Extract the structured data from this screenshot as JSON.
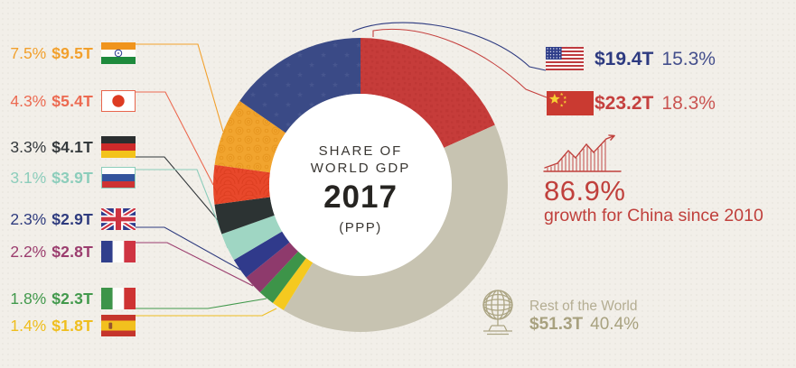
{
  "background_color": "#F2EFE9",
  "center": {
    "line1": "SHARE OF",
    "line2": "WORLD GDP",
    "year": "2017",
    "subtitle": "(PPP)"
  },
  "chart_data": {
    "type": "pie",
    "variant": "donut",
    "title": "Share of World GDP 2017 (PPP)",
    "start_angle_deg": 0,
    "direction": "clockwise",
    "segments": [
      {
        "name": "China",
        "percent": 18.3,
        "value": "$23.2T",
        "color": "#C63C3A",
        "pattern": "china"
      },
      {
        "name": "Rest of the World",
        "percent": 40.4,
        "value": "$51.3T",
        "color": "#C7C3B1"
      },
      {
        "name": "Spain",
        "percent": 1.4,
        "value": "$1.8T",
        "color": "#F5C91F"
      },
      {
        "name": "Italy",
        "percent": 1.8,
        "value": "$2.3T",
        "color": "#3D9449"
      },
      {
        "name": "France",
        "percent": 2.2,
        "value": "$2.8T",
        "color": "#8E3A6C"
      },
      {
        "name": "United Kingdom",
        "percent": 2.3,
        "value": "$2.9T",
        "color": "#303A8B"
      },
      {
        "name": "Russia",
        "percent": 3.1,
        "value": "$3.9T",
        "color": "#9FD6C3"
      },
      {
        "name": "Germany",
        "percent": 3.3,
        "value": "$4.1T",
        "color": "#2C3333"
      },
      {
        "name": "Japan",
        "percent": 4.3,
        "value": "$5.4T",
        "color": "#E8482B",
        "pattern": "japan"
      },
      {
        "name": "India",
        "percent": 7.5,
        "value": "$9.5T",
        "color": "#F1A42E",
        "pattern": "india"
      },
      {
        "name": "United States",
        "percent": 15.3,
        "value": "$19.4T",
        "color": "#3A4A86",
        "pattern": "us"
      }
    ]
  },
  "left_labels": [
    {
      "country": "India",
      "flag": "in",
      "percent": "7.5%",
      "value": "$9.5T",
      "color": "#F2A02C"
    },
    {
      "country": "Japan",
      "flag": "jp",
      "percent": "4.3%",
      "value": "$5.4T",
      "color": "#EC6A51"
    },
    {
      "country": "Germany",
      "flag": "de",
      "percent": "3.3%",
      "value": "$4.1T",
      "color": "#33383B"
    },
    {
      "country": "Russia",
      "flag": "ru",
      "percent": "3.1%",
      "value": "$3.9T",
      "color": "#8CCDBB"
    },
    {
      "country": "United Kingdom",
      "flag": "gb",
      "percent": "2.3%",
      "value": "$2.9T",
      "color": "#2E3B7E"
    },
    {
      "country": "France",
      "flag": "fr",
      "percent": "2.2%",
      "value": "$2.8T",
      "color": "#9B3D6E"
    },
    {
      "country": "Italy",
      "flag": "it",
      "percent": "1.8%",
      "value": "$2.3T",
      "color": "#42994C"
    },
    {
      "country": "Spain",
      "flag": "es",
      "percent": "1.4%",
      "value": "$1.8T",
      "color": "#EFBE1E"
    }
  ],
  "right_labels": {
    "us": {
      "country": "United States",
      "flag": "us",
      "value": "$19.4T",
      "percent": "15.3%",
      "color": "#2D3A80"
    },
    "china": {
      "country": "China",
      "flag": "cn",
      "value": "$23.2T",
      "percent": "18.3%",
      "color": "#C5403E"
    }
  },
  "growth": {
    "percent": "86.9%",
    "caption": "growth for China since 2010",
    "color": "#C0403C"
  },
  "rest_of_world": {
    "label": "Rest of the World",
    "value": "$51.3T",
    "percent": "40.4%",
    "color": "#A8A17F",
    "label_color": "#B4AD92"
  }
}
